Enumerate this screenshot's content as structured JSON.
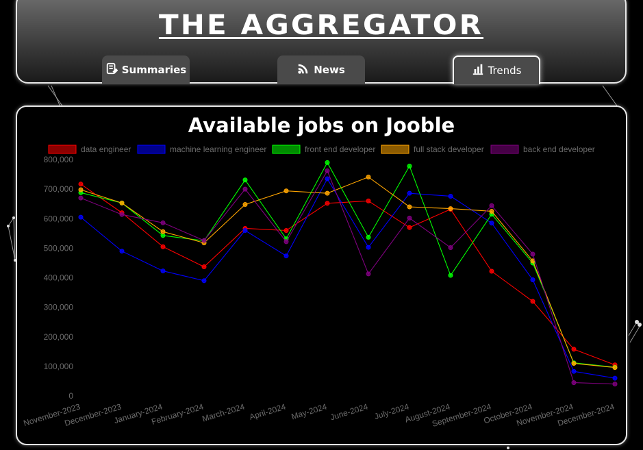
{
  "site": {
    "title": "THE AGGREGATOR"
  },
  "nav": {
    "tabs": [
      {
        "label": "Summaries",
        "icon": "document-edit-icon",
        "active": false
      },
      {
        "label": "News",
        "icon": "rss-icon",
        "active": false
      },
      {
        "label": "Trends",
        "icon": "bar-chart-icon",
        "active": true
      }
    ]
  },
  "chart_data": {
    "type": "line",
    "title": "Available jobs on Jooble",
    "categories": [
      "November-2023",
      "December-2023",
      "January-2024",
      "February-2024",
      "March-2024",
      "April-2024",
      "May-2024",
      "June-2024",
      "July-2024",
      "August-2024",
      "September-2024",
      "October-2024",
      "November-2024",
      "December-2024"
    ],
    "ylim": [
      0,
      800000
    ],
    "yticks": [
      "0",
      "100,000",
      "200,000",
      "300,000",
      "400,000",
      "500,000",
      "600,000",
      "700,000",
      "800,000"
    ],
    "grid": false,
    "legend_position": "top",
    "series": [
      {
        "name": "data engineer",
        "color": "#ff0000",
        "values": [
          717000,
          620000,
          505000,
          437000,
          567000,
          560000,
          652000,
          660000,
          570000,
          632000,
          422000,
          320000,
          158000,
          105000
        ]
      },
      {
        "name": "machine learning engineer",
        "color": "#0000ff",
        "values": [
          605000,
          490000,
          423000,
          390000,
          560000,
          474000,
          735000,
          503000,
          686000,
          676000,
          585000,
          393000,
          83000,
          60000
        ]
      },
      {
        "name": "front end developer",
        "color": "#00ff00",
        "values": [
          688000,
          653000,
          543000,
          525000,
          731000,
          532000,
          790000,
          537000,
          778000,
          408000,
          615000,
          450000,
          112000,
          97000
        ]
      },
      {
        "name": "full stack developer",
        "color": "#ffa500",
        "values": [
          698000,
          653000,
          556000,
          518000,
          648000,
          694000,
          686000,
          741000,
          640000,
          634000,
          625000,
          457000,
          110000,
          96000
        ]
      },
      {
        "name": "back end developer",
        "color": "#800080",
        "values": [
          670000,
          614000,
          586000,
          526000,
          700000,
          522000,
          762000,
          413000,
          602000,
          502000,
          644000,
          480000,
          45000,
          40000
        ]
      }
    ]
  }
}
